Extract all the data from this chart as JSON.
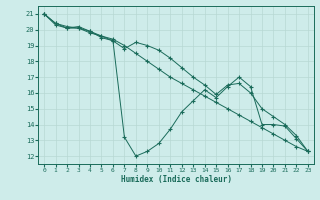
{
  "xlabel": "Humidex (Indice chaleur)",
  "bg_color": "#ceecea",
  "line_color": "#1a6b5a",
  "grid_color": "#b8d8d4",
  "xlim": [
    -0.5,
    23.5
  ],
  "ylim": [
    11.5,
    21.5
  ],
  "xticks": [
    0,
    1,
    2,
    3,
    4,
    5,
    6,
    7,
    8,
    9,
    10,
    11,
    12,
    13,
    14,
    15,
    16,
    17,
    18,
    19,
    20,
    21,
    22,
    23
  ],
  "yticks": [
    12,
    13,
    14,
    15,
    16,
    17,
    18,
    19,
    20,
    21
  ],
  "series": [
    {
      "x": [
        0,
        1,
        2,
        3,
        4,
        5,
        6,
        7,
        8,
        9,
        10,
        11,
        12,
        13,
        14,
        15,
        16,
        17,
        18,
        19,
        20,
        21,
        22,
        23
      ],
      "y": [
        21,
        20.3,
        20.1,
        20.1,
        19.8,
        19.6,
        19.3,
        13.2,
        12.0,
        12.3,
        12.8,
        13.7,
        14.8,
        15.5,
        16.2,
        15.7,
        16.4,
        17.0,
        16.4,
        14.0,
        14.0,
        13.9,
        13.1,
        12.3
      ]
    },
    {
      "x": [
        0,
        1,
        2,
        3,
        4,
        5,
        6,
        7,
        8,
        9,
        10,
        11,
        12,
        13,
        14,
        15,
        16,
        17,
        18,
        19,
        20,
        21,
        22,
        23
      ],
      "y": [
        21,
        20.4,
        20.1,
        20.2,
        19.9,
        19.6,
        19.4,
        19.0,
        18.5,
        18.0,
        17.5,
        17.0,
        16.6,
        16.2,
        15.8,
        15.4,
        15.0,
        14.6,
        14.2,
        13.8,
        13.4,
        13.0,
        12.6,
        12.3
      ]
    },
    {
      "x": [
        0,
        1,
        2,
        3,
        4,
        5,
        6,
        7,
        8,
        9,
        10,
        11,
        12,
        13,
        14,
        15,
        16,
        17,
        18,
        19,
        20,
        21,
        22,
        23
      ],
      "y": [
        21,
        20.4,
        20.2,
        20.1,
        19.9,
        19.5,
        19.3,
        18.8,
        19.2,
        19.0,
        18.7,
        18.2,
        17.6,
        17.0,
        16.5,
        15.9,
        16.5,
        16.6,
        16.0,
        15.0,
        14.5,
        14.0,
        13.3,
        12.3
      ]
    }
  ]
}
